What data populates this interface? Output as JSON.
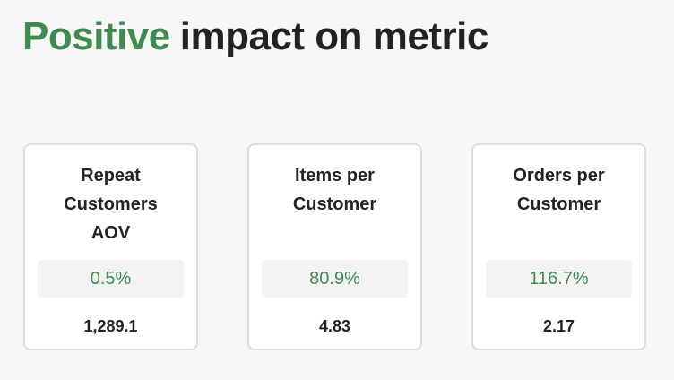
{
  "header": {
    "highlight": "Positive",
    "rest": "impact on metric"
  },
  "cards": [
    {
      "title": "Repeat Customers AOV",
      "change": "0.5%",
      "value": "1,289.1"
    },
    {
      "title": "Items per Customer",
      "change": "80.9%",
      "value": "4.83"
    },
    {
      "title": "Orders per Customer",
      "change": "116.7%",
      "value": "2.17"
    }
  ]
}
